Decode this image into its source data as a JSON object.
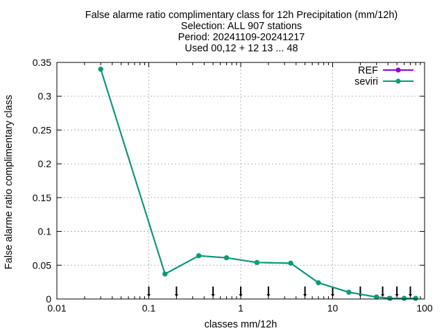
{
  "chart_data": {
    "type": "line",
    "title_lines": [
      "False alarme ratio complimentary class  for 12h Precipitation (mm/12h)",
      "Selection: ALL    907 stations",
      "Period: 20241109-20241217",
      "Used 00,12 + 12 13 ... 48"
    ],
    "xlabel": "classes mm/12h",
    "ylabel": "False alarme ratio complimentary class",
    "x_scale": "log",
    "xlim": [
      0.01,
      100
    ],
    "ylim": [
      0,
      0.35
    ],
    "x_ticks": [
      {
        "value": 0.01,
        "label": "0.01"
      },
      {
        "value": 0.1,
        "label": "0.1"
      },
      {
        "value": 1,
        "label": "1"
      },
      {
        "value": 10,
        "label": "10"
      },
      {
        "value": 100,
        "label": "100"
      }
    ],
    "y_ticks": [
      {
        "value": 0,
        "label": "0"
      },
      {
        "value": 0.05,
        "label": "0.05"
      },
      {
        "value": 0.1,
        "label": "0.1"
      },
      {
        "value": 0.15,
        "label": "0.15"
      },
      {
        "value": 0.2,
        "label": "0.2"
      },
      {
        "value": 0.25,
        "label": "0.25"
      },
      {
        "value": 0.3,
        "label": "0.3"
      },
      {
        "value": 0.35,
        "label": "0.35"
      }
    ],
    "grid": true,
    "legend_position": "top-right",
    "threshold_markers": [
      0.1,
      0.2,
      0.5,
      1,
      2,
      5,
      10,
      20,
      35,
      50,
      70
    ],
    "series": [
      {
        "name": "REF",
        "color": "#9400d3",
        "x": [
          0.03,
          0.15,
          0.35,
          0.7,
          1.5,
          3.5,
          7,
          15,
          30,
          42,
          60,
          80
        ],
        "y": [
          0.34,
          0.037,
          0.064,
          0.061,
          0.054,
          0.053,
          0.024,
          0.01,
          0.003,
          0.001,
          0.001,
          0.001
        ]
      },
      {
        "name": "seviri",
        "color": "#009e73",
        "x": [
          0.03,
          0.15,
          0.35,
          0.7,
          1.5,
          3.5,
          7,
          15,
          30,
          42,
          60,
          80
        ],
        "y": [
          0.34,
          0.037,
          0.064,
          0.061,
          0.054,
          0.053,
          0.024,
          0.01,
          0.003,
          0.001,
          0.001,
          0.001
        ]
      }
    ]
  }
}
